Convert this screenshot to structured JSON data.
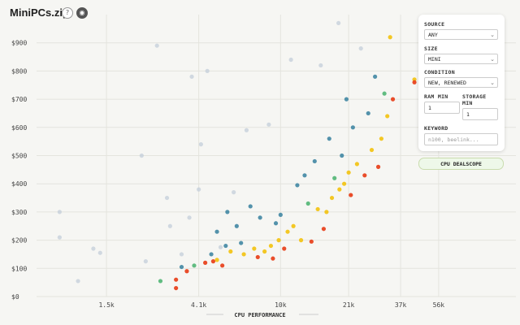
{
  "app": {
    "title": "MiniPCs.zip"
  },
  "header": {
    "help_icon": "question-circle-icon",
    "reddit_icon": "reddit-icon"
  },
  "filters": {
    "source": {
      "label": "SOURCE",
      "value": "ANY"
    },
    "size": {
      "label": "SIZE",
      "value": "MINI"
    },
    "condition": {
      "label": "CONDITION",
      "value": "NEW, RENEWED"
    },
    "ram_min": {
      "label": "RAM MIN",
      "value": "1"
    },
    "storage_min": {
      "label": "STORAGE MIN",
      "value": "1"
    },
    "keyword": {
      "label": "KEYWORD",
      "placeholder": "n100, beelink..."
    },
    "cpu_dealscope_label": "CPU DEALSCOPE"
  },
  "chart_data": {
    "type": "scatter",
    "xlabel": "CPU PERFORMANCE",
    "ylabel": "",
    "x_scale": "log",
    "x_ticks": [
      "1.5k",
      "4.1k",
      "10k",
      "21k",
      "37k",
      "56k"
    ],
    "y_ticks": [
      "$0",
      "$100",
      "$200",
      "$300",
      "$400",
      "$500",
      "$600",
      "$700",
      "$800",
      "$900"
    ],
    "ylim": [
      0,
      1000
    ],
    "grid": true,
    "colors": {
      "best": "#e8431f",
      "good": "#f2c418",
      "fair": "#58b87a",
      "mid": "#4a8ca6",
      "other": "#c3cdd9"
    },
    "points": [
      {
        "x": 900,
        "y": 300,
        "c": "other"
      },
      {
        "x": 900,
        "y": 210,
        "c": "other"
      },
      {
        "x": 1100,
        "y": 55,
        "c": "other"
      },
      {
        "x": 1300,
        "y": 170,
        "c": "other"
      },
      {
        "x": 1400,
        "y": 155,
        "c": "other"
      },
      {
        "x": 2200,
        "y": 500,
        "c": "other"
      },
      {
        "x": 2300,
        "y": 125,
        "c": "other"
      },
      {
        "x": 2600,
        "y": 890,
        "c": "other"
      },
      {
        "x": 2700,
        "y": 55,
        "c": "fair"
      },
      {
        "x": 2900,
        "y": 350,
        "c": "other"
      },
      {
        "x": 3000,
        "y": 250,
        "c": "other"
      },
      {
        "x": 3200,
        "y": 60,
        "c": "best"
      },
      {
        "x": 3200,
        "y": 30,
        "c": "best"
      },
      {
        "x": 3400,
        "y": 150,
        "c": "other"
      },
      {
        "x": 3400,
        "y": 105,
        "c": "mid"
      },
      {
        "x": 3600,
        "y": 90,
        "c": "best"
      },
      {
        "x": 3700,
        "y": 280,
        "c": "other"
      },
      {
        "x": 3800,
        "y": 780,
        "c": "other"
      },
      {
        "x": 3900,
        "y": 110,
        "c": "fair"
      },
      {
        "x": 4100,
        "y": 380,
        "c": "other"
      },
      {
        "x": 4200,
        "y": 540,
        "c": "other"
      },
      {
        "x": 4400,
        "y": 120,
        "c": "best"
      },
      {
        "x": 4500,
        "y": 800,
        "c": "other"
      },
      {
        "x": 4700,
        "y": 150,
        "c": "mid"
      },
      {
        "x": 4800,
        "y": 125,
        "c": "best"
      },
      {
        "x": 5000,
        "y": 230,
        "c": "mid"
      },
      {
        "x": 5000,
        "y": 130,
        "c": "good"
      },
      {
        "x": 5200,
        "y": 175,
        "c": "other"
      },
      {
        "x": 5300,
        "y": 110,
        "c": "best"
      },
      {
        "x": 5500,
        "y": 180,
        "c": "mid"
      },
      {
        "x": 5600,
        "y": 300,
        "c": "mid"
      },
      {
        "x": 5800,
        "y": 160,
        "c": "good"
      },
      {
        "x": 6000,
        "y": 370,
        "c": "other"
      },
      {
        "x": 6200,
        "y": 250,
        "c": "mid"
      },
      {
        "x": 6500,
        "y": 190,
        "c": "mid"
      },
      {
        "x": 6700,
        "y": 150,
        "c": "good"
      },
      {
        "x": 6900,
        "y": 590,
        "c": "other"
      },
      {
        "x": 7200,
        "y": 320,
        "c": "mid"
      },
      {
        "x": 7500,
        "y": 170,
        "c": "good"
      },
      {
        "x": 7800,
        "y": 140,
        "c": "best"
      },
      {
        "x": 8000,
        "y": 280,
        "c": "mid"
      },
      {
        "x": 8400,
        "y": 160,
        "c": "good"
      },
      {
        "x": 8800,
        "y": 610,
        "c": "other"
      },
      {
        "x": 9000,
        "y": 180,
        "c": "good"
      },
      {
        "x": 9200,
        "y": 135,
        "c": "best"
      },
      {
        "x": 9500,
        "y": 260,
        "c": "mid"
      },
      {
        "x": 9800,
        "y": 200,
        "c": "good"
      },
      {
        "x": 10000,
        "y": 290,
        "c": "mid"
      },
      {
        "x": 10400,
        "y": 170,
        "c": "best"
      },
      {
        "x": 10800,
        "y": 230,
        "c": "good"
      },
      {
        "x": 11200,
        "y": 840,
        "c": "other"
      },
      {
        "x": 11500,
        "y": 250,
        "c": "good"
      },
      {
        "x": 12000,
        "y": 395,
        "c": "mid"
      },
      {
        "x": 12500,
        "y": 200,
        "c": "good"
      },
      {
        "x": 13000,
        "y": 430,
        "c": "mid"
      },
      {
        "x": 13500,
        "y": 330,
        "c": "fair"
      },
      {
        "x": 14000,
        "y": 195,
        "c": "best"
      },
      {
        "x": 14500,
        "y": 480,
        "c": "mid"
      },
      {
        "x": 15000,
        "y": 310,
        "c": "good"
      },
      {
        "x": 15500,
        "y": 820,
        "c": "other"
      },
      {
        "x": 16000,
        "y": 240,
        "c": "best"
      },
      {
        "x": 16500,
        "y": 300,
        "c": "good"
      },
      {
        "x": 17000,
        "y": 560,
        "c": "mid"
      },
      {
        "x": 17500,
        "y": 350,
        "c": "good"
      },
      {
        "x": 18000,
        "y": 420,
        "c": "fair"
      },
      {
        "x": 18800,
        "y": 970,
        "c": "other"
      },
      {
        "x": 19000,
        "y": 380,
        "c": "good"
      },
      {
        "x": 19500,
        "y": 500,
        "c": "mid"
      },
      {
        "x": 20000,
        "y": 400,
        "c": "good"
      },
      {
        "x": 20500,
        "y": 700,
        "c": "mid"
      },
      {
        "x": 21000,
        "y": 440,
        "c": "good"
      },
      {
        "x": 21500,
        "y": 360,
        "c": "best"
      },
      {
        "x": 22000,
        "y": 600,
        "c": "mid"
      },
      {
        "x": 23000,
        "y": 470,
        "c": "good"
      },
      {
        "x": 24000,
        "y": 880,
        "c": "other"
      },
      {
        "x": 25000,
        "y": 430,
        "c": "best"
      },
      {
        "x": 26000,
        "y": 650,
        "c": "mid"
      },
      {
        "x": 27000,
        "y": 520,
        "c": "good"
      },
      {
        "x": 28000,
        "y": 780,
        "c": "mid"
      },
      {
        "x": 29000,
        "y": 460,
        "c": "best"
      },
      {
        "x": 30000,
        "y": 560,
        "c": "good"
      },
      {
        "x": 31000,
        "y": 720,
        "c": "fair"
      },
      {
        "x": 32000,
        "y": 640,
        "c": "good"
      },
      {
        "x": 33000,
        "y": 920,
        "c": "good"
      },
      {
        "x": 34000,
        "y": 700,
        "c": "best"
      },
      {
        "x": 43000,
        "y": 770,
        "c": "good"
      },
      {
        "x": 43000,
        "y": 760,
        "c": "best"
      }
    ]
  }
}
